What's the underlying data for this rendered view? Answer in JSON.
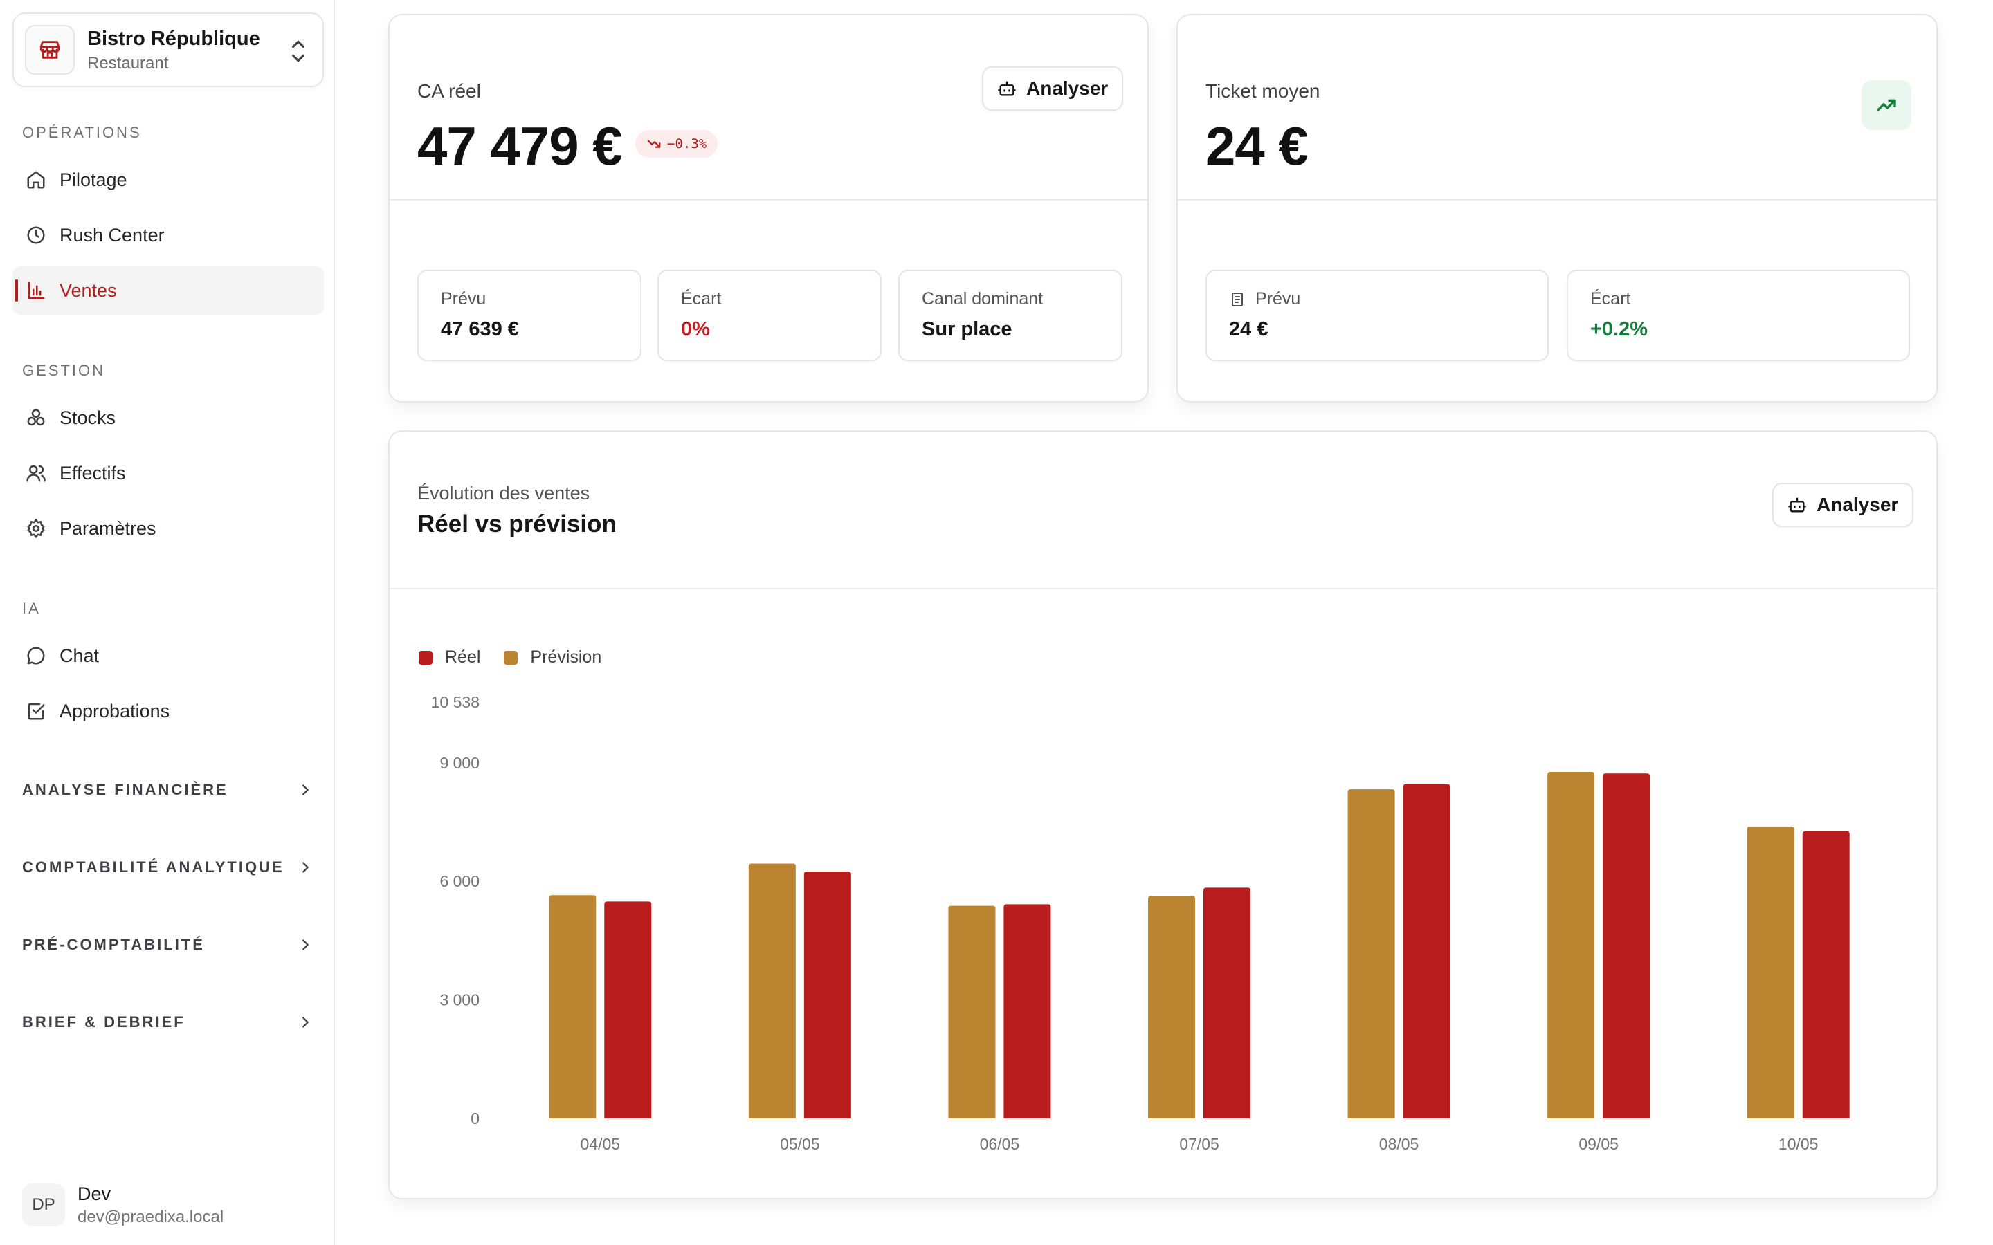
{
  "org": {
    "name": "Bistro République",
    "type": "Restaurant"
  },
  "nav": {
    "sections": [
      {
        "title": "OPÉRATIONS",
        "items": [
          "Pilotage",
          "Rush Center",
          "Ventes"
        ]
      },
      {
        "title": "GESTION",
        "items": [
          "Stocks",
          "Effectifs",
          "Paramètres"
        ]
      },
      {
        "title": "IA",
        "items": [
          "Chat",
          "Approbations"
        ]
      }
    ],
    "active": "Ventes",
    "groups": [
      "ANALYSE FINANCIÈRE",
      "COMPTABILITÉ ANALYTIQUE",
      "PRÉ-COMPTABILITÉ",
      "BRIEF & DEBRIEF"
    ]
  },
  "user": {
    "initials": "DP",
    "name": "Dev",
    "email": "dev@praedixa.local"
  },
  "ca_card": {
    "label": "CA réel",
    "value": "47 479 €",
    "trend": "−0.3%",
    "analyze_label": "Analyser",
    "stats": [
      {
        "label": "Prévu",
        "value": "47 639 €"
      },
      {
        "label": "Écart",
        "value": "0%"
      },
      {
        "label": "Canal dominant",
        "value": "Sur place"
      }
    ]
  },
  "ticket_card": {
    "label": "Ticket moyen",
    "value": "24 €",
    "stats": [
      {
        "label": "Prévu",
        "value": "24 €"
      },
      {
        "label": "Écart",
        "value": "+0.2%"
      }
    ]
  },
  "chart_card": {
    "subtitle": "Évolution des ventes",
    "title": "Réel vs prévision",
    "analyze_label": "Analyser"
  },
  "colors": {
    "accent": "#b91c1c",
    "reel": "#b91c1c",
    "prevision": "#bb8430",
    "positive": "#15803d"
  },
  "chart_data": {
    "type": "bar",
    "categories": [
      "04/05",
      "05/05",
      "06/05",
      "07/05",
      "08/05",
      "09/05",
      "10/05"
    ],
    "series": [
      {
        "name": "Prévision",
        "values": [
          5650,
          6450,
          5380,
          5630,
          8330,
          8770,
          7390
        ]
      },
      {
        "name": "Réel",
        "values": [
          5490,
          6250,
          5420,
          5840,
          8460,
          8730,
          7270
        ]
      }
    ],
    "legend": [
      "Réel",
      "Prévision"
    ],
    "yticks": [
      "10 538",
      "9 000",
      "6 000",
      "3 000",
      "0"
    ],
    "ylim": [
      0,
      10538
    ],
    "grid": false
  }
}
